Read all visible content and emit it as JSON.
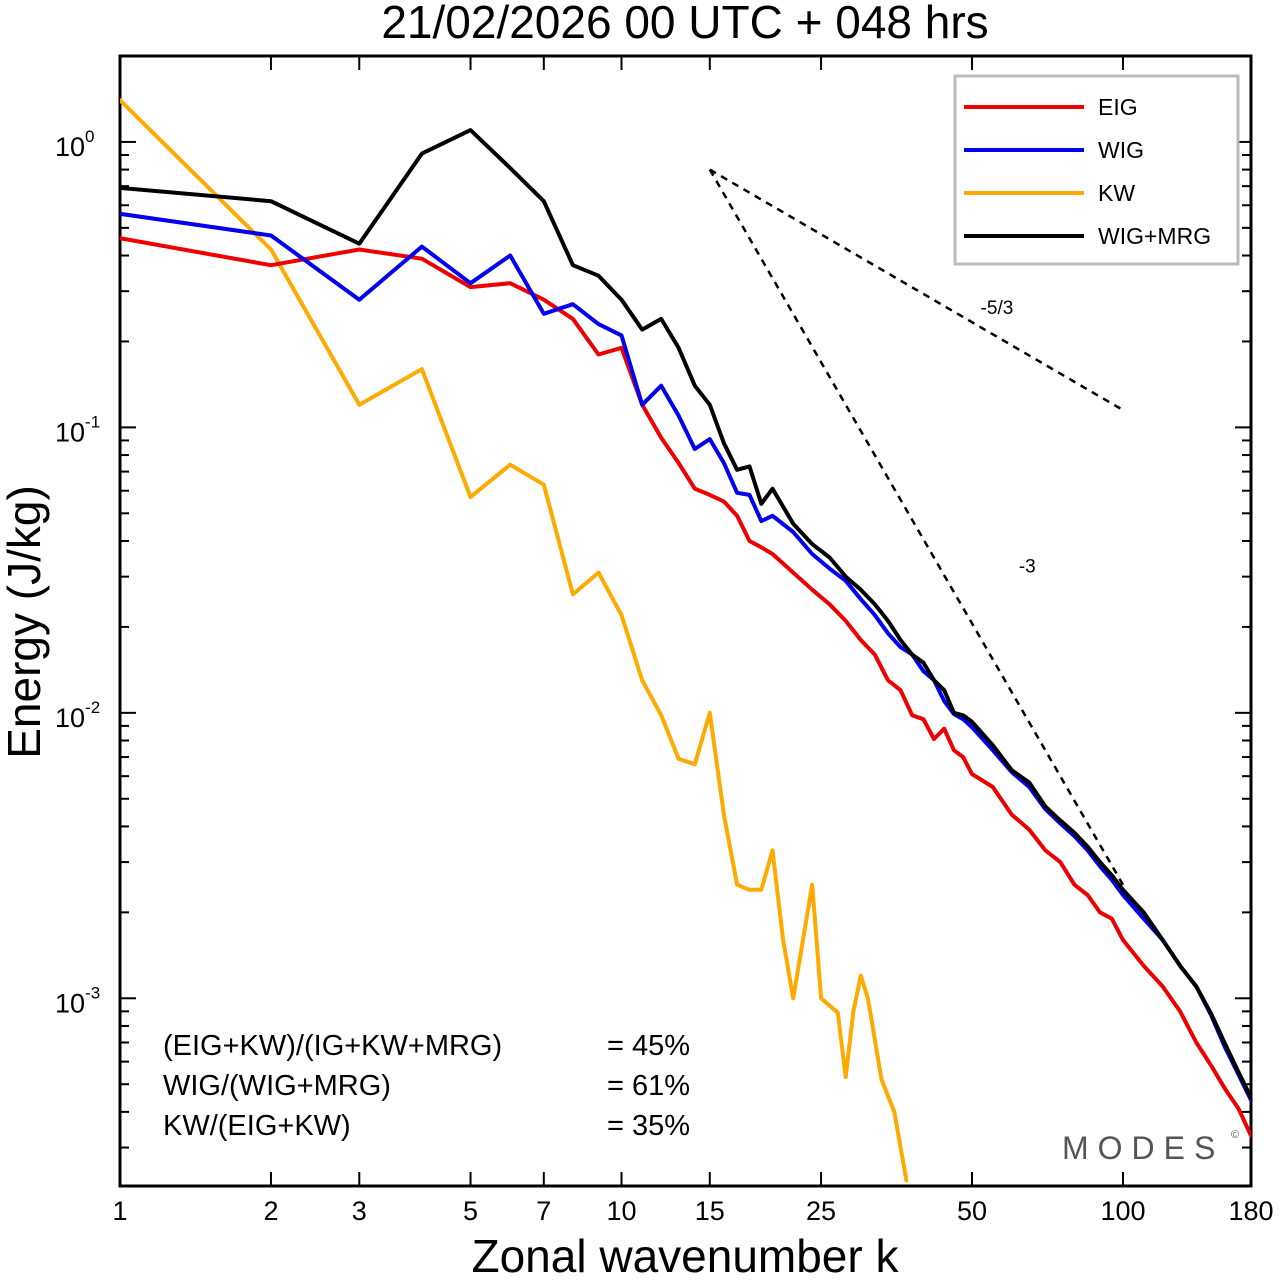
{
  "chart_data": {
    "type": "line",
    "title": "21/02/2026  00 UTC  + 048 hrs",
    "xlabel": "Zonal wavenumber k",
    "ylabel": "Energy (J/kg)",
    "xscale": "log",
    "yscale": "log",
    "xlim": [
      1,
      180
    ],
    "ylim": [
      0.00022,
      2.0
    ],
    "x_ticks": [
      {
        "value": 1,
        "label": "1"
      },
      {
        "value": 2,
        "label": "2"
      },
      {
        "value": 3,
        "label": "3"
      },
      {
        "value": 5,
        "label": "5"
      },
      {
        "value": 7,
        "label": "7"
      },
      {
        "value": 10,
        "label": "10"
      },
      {
        "value": 15,
        "label": "15"
      },
      {
        "value": 25,
        "label": "25"
      },
      {
        "value": 50,
        "label": "50"
      },
      {
        "value": 100,
        "label": "100"
      },
      {
        "value": 180,
        "label": "180"
      }
    ],
    "y_ticks": [
      {
        "value": 1,
        "base": "10",
        "exponent": "0"
      },
      {
        "value": 0.1,
        "base": "10",
        "exponent": "-1"
      },
      {
        "value": 0.01,
        "base": "10",
        "exponent": "-2"
      },
      {
        "value": 0.001,
        "base": "10",
        "exponent": "-3"
      }
    ],
    "legend_position": "top-right",
    "series": [
      {
        "name": "EIG",
        "color": "#ee0000",
        "points": [
          [
            1,
            0.46
          ],
          [
            2,
            0.37
          ],
          [
            3,
            0.42
          ],
          [
            4,
            0.39
          ],
          [
            5,
            0.31
          ],
          [
            6,
            0.32
          ],
          [
            7,
            0.28
          ],
          [
            8,
            0.24
          ],
          [
            9,
            0.18
          ],
          [
            10,
            0.19
          ],
          [
            11,
            0.12
          ],
          [
            12,
            0.092
          ],
          [
            13,
            0.075
          ],
          [
            14,
            0.061
          ],
          [
            15,
            0.058
          ],
          [
            16,
            0.055
          ],
          [
            17,
            0.049
          ],
          [
            18,
            0.04
          ],
          [
            19,
            0.038
          ],
          [
            20,
            0.036
          ],
          [
            22,
            0.031
          ],
          [
            24,
            0.027
          ],
          [
            26,
            0.024
          ],
          [
            28,
            0.021
          ],
          [
            30,
            0.018
          ],
          [
            32,
            0.016
          ],
          [
            34,
            0.013
          ],
          [
            36,
            0.012
          ],
          [
            38,
            0.0098
          ],
          [
            40,
            0.0095
          ],
          [
            42,
            0.0081
          ],
          [
            44,
            0.0088
          ],
          [
            46,
            0.0074
          ],
          [
            48,
            0.007
          ],
          [
            50,
            0.0061
          ],
          [
            55,
            0.0055
          ],
          [
            60,
            0.0044
          ],
          [
            65,
            0.0039
          ],
          [
            70,
            0.0033
          ],
          [
            75,
            0.003
          ],
          [
            80,
            0.0025
          ],
          [
            85,
            0.0023
          ],
          [
            90,
            0.002
          ],
          [
            95,
            0.0019
          ],
          [
            100,
            0.0016
          ],
          [
            110,
            0.0013
          ],
          [
            120,
            0.0011
          ],
          [
            130,
            0.0009
          ],
          [
            140,
            0.0007
          ],
          [
            150,
            0.00058
          ],
          [
            160,
            0.00048
          ],
          [
            170,
            0.00041
          ],
          [
            180,
            0.00033
          ]
        ]
      },
      {
        "name": "WIG",
        "color": "#0000ee",
        "points": [
          [
            1,
            0.56
          ],
          [
            2,
            0.47
          ],
          [
            3,
            0.28
          ],
          [
            4,
            0.43
          ],
          [
            5,
            0.32
          ],
          [
            6,
            0.4
          ],
          [
            7,
            0.25
          ],
          [
            8,
            0.27
          ],
          [
            9,
            0.23
          ],
          [
            10,
            0.21
          ],
          [
            11,
            0.12
          ],
          [
            12,
            0.14
          ],
          [
            13,
            0.11
          ],
          [
            14,
            0.084
          ],
          [
            15,
            0.091
          ],
          [
            16,
            0.075
          ],
          [
            17,
            0.059
          ],
          [
            18,
            0.058
          ],
          [
            19,
            0.047
          ],
          [
            20,
            0.049
          ],
          [
            22,
            0.043
          ],
          [
            24,
            0.036
          ],
          [
            26,
            0.032
          ],
          [
            28,
            0.029
          ],
          [
            30,
            0.025
          ],
          [
            32,
            0.022
          ],
          [
            34,
            0.019
          ],
          [
            36,
            0.017
          ],
          [
            38,
            0.016
          ],
          [
            40,
            0.014
          ],
          [
            42,
            0.013
          ],
          [
            44,
            0.011
          ],
          [
            46,
            0.0099
          ],
          [
            48,
            0.0095
          ],
          [
            50,
            0.0089
          ],
          [
            55,
            0.0074
          ],
          [
            60,
            0.0062
          ],
          [
            65,
            0.0055
          ],
          [
            70,
            0.0046
          ],
          [
            75,
            0.0041
          ],
          [
            80,
            0.0037
          ],
          [
            85,
            0.0033
          ],
          [
            90,
            0.0029
          ],
          [
            95,
            0.0026
          ],
          [
            100,
            0.0023
          ],
          [
            110,
            0.0019
          ],
          [
            120,
            0.0016
          ],
          [
            130,
            0.0013
          ],
          [
            140,
            0.0011
          ],
          [
            150,
            0.00087
          ],
          [
            160,
            0.00067
          ],
          [
            170,
            0.00054
          ],
          [
            180,
            0.00044
          ]
        ]
      },
      {
        "name": "KW",
        "color": "#ffaa00",
        "points": [
          [
            1,
            1.4
          ],
          [
            2,
            0.42
          ],
          [
            3,
            0.12
          ],
          [
            4,
            0.16
          ],
          [
            5,
            0.057
          ],
          [
            6,
            0.074
          ],
          [
            7,
            0.063
          ],
          [
            8,
            0.026
          ],
          [
            9,
            0.031
          ],
          [
            10,
            0.022
          ],
          [
            11,
            0.013
          ],
          [
            12,
            0.0098
          ],
          [
            13,
            0.0069
          ],
          [
            14,
            0.0066
          ],
          [
            15,
            0.01
          ],
          [
            16,
            0.0044
          ],
          [
            17,
            0.0025
          ],
          [
            18,
            0.0024
          ],
          [
            19,
            0.0024
          ],
          [
            20,
            0.0033
          ],
          [
            21,
            0.0016
          ],
          [
            22,
            0.001
          ],
          [
            24,
            0.0025
          ],
          [
            25,
            0.001
          ],
          [
            27,
            0.00089
          ],
          [
            28,
            0.00053
          ],
          [
            29,
            0.0009
          ],
          [
            30,
            0.0012
          ],
          [
            31,
            0.001
          ],
          [
            33,
            0.00052
          ],
          [
            35,
            0.0004
          ],
          [
            37,
            0.00023
          ]
        ]
      },
      {
        "name": "WIG+MRG",
        "color": "#000000",
        "points": [
          [
            1,
            0.69
          ],
          [
            2,
            0.62
          ],
          [
            3,
            0.44
          ],
          [
            4,
            0.91
          ],
          [
            5,
            1.1
          ],
          [
            6,
            0.81
          ],
          [
            7,
            0.62
          ],
          [
            8,
            0.37
          ],
          [
            9,
            0.34
          ],
          [
            10,
            0.28
          ],
          [
            11,
            0.22
          ],
          [
            12,
            0.24
          ],
          [
            13,
            0.19
          ],
          [
            14,
            0.14
          ],
          [
            15,
            0.12
          ],
          [
            16,
            0.088
          ],
          [
            17,
            0.071
          ],
          [
            18,
            0.073
          ],
          [
            19,
            0.054
          ],
          [
            20,
            0.061
          ],
          [
            22,
            0.046
          ],
          [
            24,
            0.039
          ],
          [
            26,
            0.035
          ],
          [
            28,
            0.03
          ],
          [
            30,
            0.027
          ],
          [
            32,
            0.024
          ],
          [
            34,
            0.021
          ],
          [
            36,
            0.018
          ],
          [
            38,
            0.016
          ],
          [
            40,
            0.015
          ],
          [
            42,
            0.013
          ],
          [
            44,
            0.012
          ],
          [
            46,
            0.01
          ],
          [
            48,
            0.0098
          ],
          [
            50,
            0.0093
          ],
          [
            55,
            0.0077
          ],
          [
            60,
            0.0063
          ],
          [
            65,
            0.0057
          ],
          [
            70,
            0.0047
          ],
          [
            75,
            0.0042
          ],
          [
            80,
            0.0038
          ],
          [
            85,
            0.0034
          ],
          [
            90,
            0.003
          ],
          [
            95,
            0.0027
          ],
          [
            100,
            0.0024
          ],
          [
            110,
            0.002
          ],
          [
            120,
            0.0016
          ],
          [
            130,
            0.0013
          ],
          [
            140,
            0.0011
          ],
          [
            150,
            0.00088
          ],
          [
            160,
            0.00069
          ],
          [
            170,
            0.00055
          ],
          [
            180,
            0.00045
          ]
        ]
      }
    ],
    "reference_lines": [
      {
        "label": "-5/3",
        "start": [
          15,
          0.8
        ],
        "end": [
          100,
          0.115
        ],
        "label_at": [
          52,
          0.25
        ]
      },
      {
        "label": "-3",
        "start": [
          15,
          0.8
        ],
        "end": [
          100,
          0.0025
        ],
        "label_at": [
          62,
          0.031
        ]
      }
    ],
    "annotations": [
      {
        "label": "(EIG+KW)/(IG+KW+MRG)",
        "value": "= 45%"
      },
      {
        "label": "WIG/(WIG+MRG)",
        "value": "= 61%"
      },
      {
        "label": "KW/(EIG+KW)",
        "value": "= 35%"
      }
    ]
  },
  "logo": {
    "text": "MODES",
    "mark": "©"
  }
}
